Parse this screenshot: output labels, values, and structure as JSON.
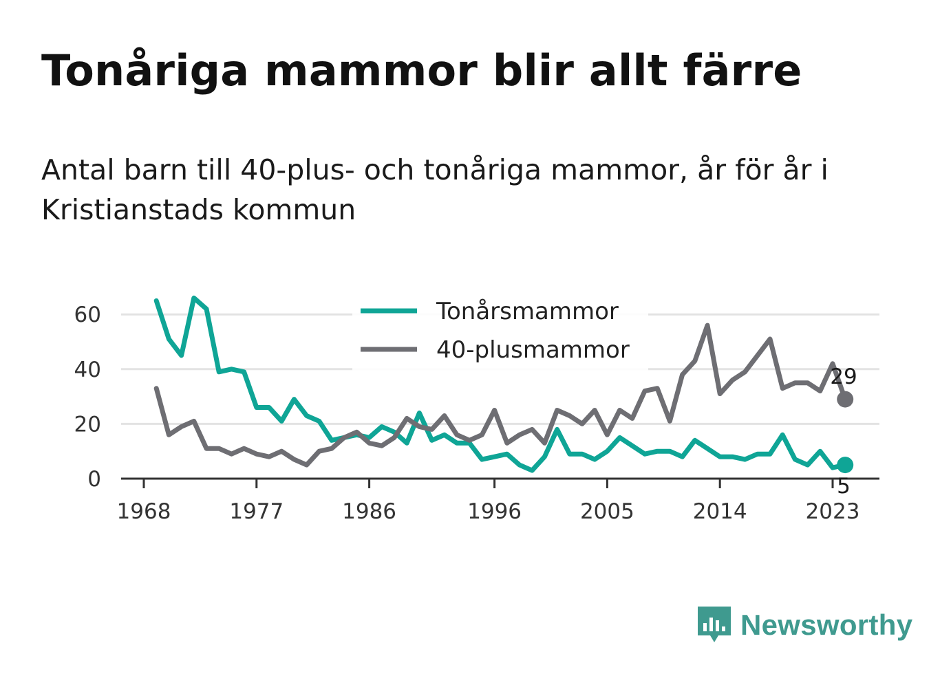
{
  "title": "Tonåriga mammor blir allt färre",
  "subtitle": "Antal barn till 40-plus- och tonåriga mammor, år för år i Kristianstads kommun",
  "brand": "Newsworthy",
  "colors": {
    "teens": "#0fa596",
    "over40": "#6e6e73",
    "grid": "#e3e3e3",
    "axis": "#333333"
  },
  "chart_data": {
    "type": "line",
    "title": "Tonåriga mammor blir allt färre",
    "subtitle": "Antal barn till 40-plus- och tonåriga mammor, år för år i Kristianstads kommun",
    "xlabel": "",
    "ylabel": "",
    "x_ticks": [
      1968,
      1977,
      1986,
      1996,
      2005,
      2014,
      2023
    ],
    "y_ticks": [
      0,
      20,
      40,
      60
    ],
    "xlim": [
      1968,
      2026
    ],
    "ylim": [
      0,
      70
    ],
    "grid": true,
    "legend_position": "top-center",
    "x": [
      1969,
      1970,
      1971,
      1972,
      1973,
      1974,
      1975,
      1976,
      1977,
      1978,
      1979,
      1980,
      1981,
      1982,
      1983,
      1984,
      1985,
      1986,
      1987,
      1988,
      1989,
      1990,
      1991,
      1992,
      1993,
      1994,
      1995,
      1996,
      1997,
      1998,
      1999,
      2000,
      2001,
      2002,
      2003,
      2004,
      2005,
      2006,
      2007,
      2008,
      2009,
      2010,
      2011,
      2012,
      2013,
      2014,
      2015,
      2016,
      2017,
      2018,
      2019,
      2020,
      2021,
      2022,
      2023,
      2024
    ],
    "series": [
      {
        "name": "Tonårsmammor",
        "color": "#0fa596",
        "values": [
          65,
          51,
          45,
          66,
          62,
          39,
          40,
          39,
          26,
          26,
          21,
          29,
          23,
          21,
          14,
          15,
          16,
          15,
          19,
          17,
          13,
          24,
          14,
          16,
          13,
          13,
          7,
          8,
          9,
          5,
          3,
          8,
          18,
          9,
          9,
          7,
          10,
          15,
          12,
          9,
          10,
          10,
          8,
          14,
          11,
          8,
          8,
          7,
          9,
          9,
          16,
          7,
          5,
          10,
          4,
          5
        ],
        "end_label": "5"
      },
      {
        "name": "40-plusmammor",
        "color": "#6e6e73",
        "values": [
          33,
          16,
          19,
          21,
          11,
          11,
          9,
          11,
          9,
          8,
          10,
          7,
          5,
          10,
          11,
          15,
          17,
          13,
          12,
          15,
          22,
          19,
          18,
          23,
          16,
          14,
          16,
          25,
          13,
          16,
          18,
          13,
          25,
          23,
          20,
          25,
          16,
          25,
          22,
          32,
          33,
          21,
          38,
          43,
          56,
          31,
          36,
          39,
          45,
          51,
          33,
          35,
          35,
          32,
          42,
          29
        ],
        "end_label": "29"
      }
    ]
  }
}
